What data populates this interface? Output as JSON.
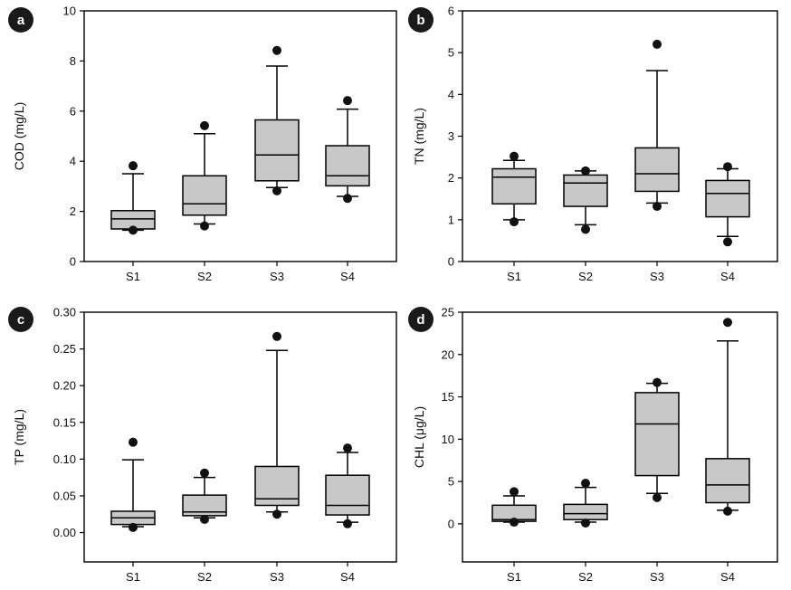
{
  "chart_data": [
    {
      "type": "box",
      "panel_label": "a",
      "ylabel": "COD (mg/L)",
      "ylim": [
        0,
        10
      ],
      "yticks": [
        "0",
        "2",
        "4",
        "6",
        "8",
        "10"
      ],
      "ytick_values": [
        0,
        2,
        4,
        6,
        8,
        10
      ],
      "categories": [
        "S1",
        "S2",
        "S3",
        "S4"
      ],
      "boxes": [
        {
          "whisker_low": 1.25,
          "q1": 1.3,
          "median": 1.7,
          "q3": 2.03,
          "whisker_high": 3.5,
          "outliers": [
            3.82,
            1.25
          ]
        },
        {
          "whisker_low": 1.5,
          "q1": 1.85,
          "median": 2.3,
          "q3": 3.42,
          "whisker_high": 5.1,
          "outliers": [
            5.42,
            1.42
          ]
        },
        {
          "whisker_low": 2.95,
          "q1": 3.22,
          "median": 4.25,
          "q3": 5.65,
          "whisker_high": 7.8,
          "outliers": [
            8.42,
            2.82
          ]
        },
        {
          "whisker_low": 2.6,
          "q1": 3.02,
          "median": 3.42,
          "q3": 4.62,
          "whisker_high": 6.08,
          "outliers": [
            6.42,
            2.52
          ]
        }
      ]
    },
    {
      "type": "box",
      "panel_label": "b",
      "ylabel": "TN (mg/L)",
      "ylim": [
        0,
        6
      ],
      "yticks": [
        "0",
        "1",
        "2",
        "3",
        "4",
        "5",
        "6"
      ],
      "ytick_values": [
        0,
        1,
        2,
        3,
        4,
        5,
        6
      ],
      "categories": [
        "S1",
        "S2",
        "S3",
        "S4"
      ],
      "boxes": [
        {
          "whisker_low": 1.0,
          "q1": 1.38,
          "median": 2.02,
          "q3": 2.22,
          "whisker_high": 2.42,
          "outliers": [
            2.52,
            0.95
          ]
        },
        {
          "whisker_low": 0.88,
          "q1": 1.32,
          "median": 1.88,
          "q3": 2.07,
          "whisker_high": 2.17,
          "outliers": [
            2.17,
            0.77
          ]
        },
        {
          "whisker_low": 1.4,
          "q1": 1.68,
          "median": 2.1,
          "q3": 2.72,
          "whisker_high": 4.57,
          "outliers": [
            5.2,
            1.32
          ]
        },
        {
          "whisker_low": 0.6,
          "q1": 1.07,
          "median": 1.63,
          "q3": 1.94,
          "whisker_high": 2.22,
          "outliers": [
            2.27,
            0.47
          ]
        }
      ]
    },
    {
      "type": "box",
      "panel_label": "c",
      "ylabel": "TP (mg/L)",
      "ylim": [
        -0.04,
        0.3
      ],
      "yticks": [
        "0.00",
        "0.05",
        "0.10",
        "0.15",
        "0.20",
        "0.25",
        "0.30"
      ],
      "ytick_values": [
        0,
        0.05,
        0.1,
        0.15,
        0.2,
        0.25,
        0.3
      ],
      "categories": [
        "S1",
        "S2",
        "S3",
        "S4"
      ],
      "boxes": [
        {
          "whisker_low": 0.008,
          "q1": 0.011,
          "median": 0.02,
          "q3": 0.029,
          "whisker_high": 0.099,
          "outliers": [
            0.123,
            0.007
          ]
        },
        {
          "whisker_low": 0.02,
          "q1": 0.023,
          "median": 0.028,
          "q3": 0.051,
          "whisker_high": 0.075,
          "outliers": [
            0.081,
            0.018
          ]
        },
        {
          "whisker_low": 0.028,
          "q1": 0.037,
          "median": 0.046,
          "q3": 0.09,
          "whisker_high": 0.248,
          "outliers": [
            0.267,
            0.025
          ]
        },
        {
          "whisker_low": 0.014,
          "q1": 0.024,
          "median": 0.037,
          "q3": 0.078,
          "whisker_high": 0.109,
          "outliers": [
            0.115,
            0.012
          ]
        }
      ]
    },
    {
      "type": "box",
      "panel_label": "d",
      "ylabel": "CHL (μg/L)",
      "ylim": [
        -4.5,
        25
      ],
      "yticks": [
        "0",
        "5",
        "10",
        "15",
        "20",
        "25"
      ],
      "ytick_values": [
        0,
        5,
        10,
        15,
        20,
        25
      ],
      "categories": [
        "S1",
        "S2",
        "S3",
        "S4"
      ],
      "boxes": [
        {
          "whisker_low": 0.2,
          "q1": 0.3,
          "median": 0.5,
          "q3": 2.2,
          "whisker_high": 3.3,
          "outliers": [
            3.8,
            0.2
          ]
        },
        {
          "whisker_low": 0.2,
          "q1": 0.5,
          "median": 1.2,
          "q3": 2.3,
          "whisker_high": 4.3,
          "outliers": [
            4.8,
            0.1
          ]
        },
        {
          "whisker_low": 3.6,
          "q1": 5.7,
          "median": 11.8,
          "q3": 15.5,
          "whisker_high": 16.6,
          "outliers": [
            16.7,
            3.1
          ]
        },
        {
          "whisker_low": 1.6,
          "q1": 2.5,
          "median": 4.6,
          "q3": 7.7,
          "whisker_high": 21.6,
          "outliers": [
            23.8,
            1.5
          ]
        }
      ]
    }
  ]
}
